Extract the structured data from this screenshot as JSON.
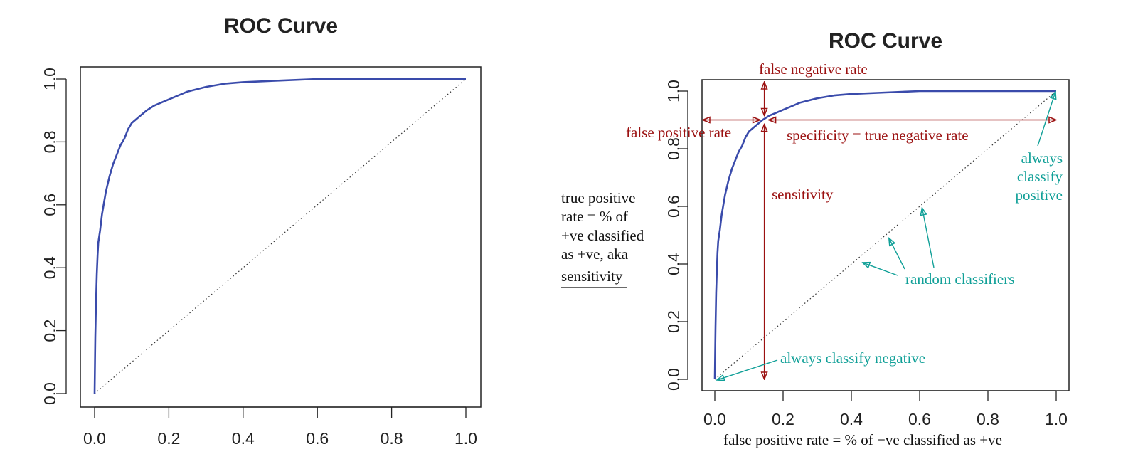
{
  "colors": {
    "curve": "#3a4bab",
    "axis": "#222222",
    "annotation_red": "#9b1111",
    "annotation_teal": "#11a098",
    "text": "#111111"
  },
  "chart_data": [
    {
      "type": "line",
      "title": "ROC Curve",
      "xlabel": "",
      "ylabel": "",
      "xlim": [
        0,
        1
      ],
      "ylim": [
        0,
        1
      ],
      "x_ticks": [
        "0.0",
        "0.2",
        "0.4",
        "0.6",
        "0.8",
        "1.0"
      ],
      "y_ticks": [
        "0.0",
        "0.2",
        "0.4",
        "0.6",
        "0.8",
        "1.0"
      ],
      "grid": false,
      "series": [
        {
          "name": "ROC",
          "style": "solid",
          "x": [
            0,
            0.002,
            0.004,
            0.006,
            0.008,
            0.01,
            0.015,
            0.02,
            0.03,
            0.04,
            0.05,
            0.06,
            0.07,
            0.08,
            0.09,
            0.1,
            0.12,
            0.14,
            0.16,
            0.18,
            0.2,
            0.22,
            0.25,
            0.3,
            0.35,
            0.4,
            0.5,
            0.6,
            0.7,
            0.8,
            0.9,
            1.0
          ],
          "y": [
            0,
            0.18,
            0.3,
            0.38,
            0.44,
            0.48,
            0.52,
            0.57,
            0.64,
            0.69,
            0.73,
            0.76,
            0.79,
            0.81,
            0.84,
            0.86,
            0.88,
            0.9,
            0.915,
            0.925,
            0.935,
            0.945,
            0.96,
            0.975,
            0.985,
            0.99,
            0.995,
            1.0,
            1.0,
            1.0,
            1.0,
            1.0
          ]
        },
        {
          "name": "random",
          "style": "dotted",
          "x": [
            0,
            1
          ],
          "y": [
            0,
            1
          ]
        }
      ]
    },
    {
      "type": "line",
      "title": "ROC Curve",
      "xlabel": "false positive rate = % of −ve classified as +ve",
      "ylabel": "",
      "xlim": [
        0,
        1
      ],
      "ylim": [
        0,
        1
      ],
      "x_ticks": [
        "0.0",
        "0.2",
        "0.4",
        "0.6",
        "0.8",
        "1.0"
      ],
      "y_ticks": [
        "0.0",
        "0.2",
        "0.4",
        "0.6",
        "0.8",
        "1.0"
      ],
      "grid": false,
      "series": [
        {
          "name": "ROC",
          "style": "solid",
          "x": [
            0,
            0.002,
            0.004,
            0.006,
            0.008,
            0.01,
            0.015,
            0.02,
            0.03,
            0.04,
            0.05,
            0.06,
            0.07,
            0.08,
            0.09,
            0.1,
            0.12,
            0.14,
            0.16,
            0.18,
            0.2,
            0.22,
            0.25,
            0.3,
            0.35,
            0.4,
            0.5,
            0.6,
            0.7,
            0.8,
            0.9,
            1.0
          ],
          "y": [
            0,
            0.18,
            0.3,
            0.38,
            0.44,
            0.48,
            0.52,
            0.57,
            0.64,
            0.69,
            0.73,
            0.76,
            0.79,
            0.81,
            0.84,
            0.86,
            0.88,
            0.9,
            0.915,
            0.925,
            0.935,
            0.945,
            0.96,
            0.975,
            0.985,
            0.99,
            0.995,
            1.0,
            1.0,
            1.0,
            1.0,
            1.0
          ]
        },
        {
          "name": "random",
          "style": "dotted",
          "x": [
            0,
            1
          ],
          "y": [
            0,
            1
          ]
        }
      ],
      "annotations": {
        "operating_point": {
          "x": 0.145,
          "y": 0.9
        },
        "false_negative_rate": "false negative rate",
        "false_positive_rate": "false positive rate",
        "specificity": "specificity = true negative rate",
        "sensitivity": "sensitivity",
        "always_classify": "always",
        "always_positive_line2": "classify",
        "always_positive_line3": "positive",
        "random_classifiers": "random classifiers",
        "always_classify_negative": "always classify negative",
        "random_points": [
          {
            "x": 0.42,
            "y": 0.41
          },
          {
            "x": 0.51,
            "y": 0.5
          },
          {
            "x": 0.605,
            "y": 0.6
          }
        ]
      },
      "side_note": {
        "lines": [
          "true positive",
          "rate = % of",
          "+ve classified",
          "as +ve, aka"
        ],
        "underlined": "sensitivity"
      }
    }
  ]
}
